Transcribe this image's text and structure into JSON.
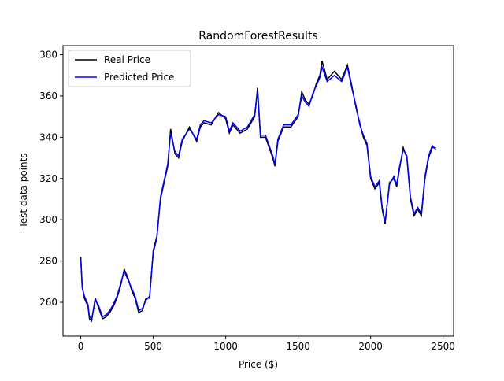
{
  "chart_data": {
    "type": "line",
    "title": "RandomForestResults",
    "x_label": "Price ($)",
    "y_label": "Test data points",
    "x": [
      0,
      10,
      25,
      50,
      60,
      75,
      100,
      120,
      150,
      175,
      200,
      225,
      250,
      275,
      300,
      325,
      350,
      375,
      400,
      425,
      450,
      475,
      500,
      525,
      550,
      575,
      600,
      620,
      650,
      675,
      700,
      750,
      800,
      825,
      850,
      900,
      950,
      1000,
      1025,
      1050,
      1100,
      1150,
      1200,
      1220,
      1240,
      1275,
      1300,
      1325,
      1340,
      1360,
      1400,
      1450,
      1500,
      1525,
      1550,
      1575,
      1600,
      1625,
      1650,
      1665,
      1700,
      1750,
      1800,
      1840,
      1870,
      1900,
      1925,
      1950,
      1975,
      2000,
      2030,
      2060,
      2080,
      2100,
      2130,
      2160,
      2180,
      2200,
      2225,
      2250,
      2275,
      2300,
      2325,
      2350,
      2375,
      2400,
      2425,
      2450
    ],
    "series": [
      {
        "name": "Real Price",
        "color": "#000000",
        "values": [
          282,
          268,
          262,
          258,
          252,
          251,
          262,
          258,
          252,
          253,
          255,
          258,
          262,
          268,
          276,
          272,
          266,
          262,
          255,
          256,
          262,
          262,
          285,
          292,
          310,
          318,
          326,
          344,
          332,
          330,
          338,
          345,
          338,
          345,
          347,
          346,
          352,
          349,
          342,
          346,
          342,
          344,
          350,
          364,
          340,
          340,
          335,
          330,
          326,
          338,
          345,
          345,
          350,
          362,
          358,
          356,
          360,
          366,
          370,
          377,
          368,
          372,
          368,
          375,
          365,
          354,
          347,
          340,
          336,
          320,
          315,
          318,
          305,
          298,
          318,
          320,
          316,
          325,
          335,
          330,
          310,
          302,
          305,
          302,
          320,
          330,
          335,
          335
        ]
      },
      {
        "name": "Predicted Price",
        "color": "#0000ff",
        "values": [
          281,
          267,
          263,
          259,
          253,
          252,
          261,
          259,
          253,
          254,
          256,
          259,
          263,
          269,
          275,
          271,
          267,
          263,
          256,
          257,
          261,
          263,
          284,
          291,
          311,
          319,
          327,
          342,
          333,
          331,
          339,
          344,
          339,
          346,
          348,
          347,
          351,
          350,
          343,
          347,
          343,
          345,
          351,
          362,
          341,
          341,
          336,
          331,
          327,
          339,
          346,
          346,
          351,
          360,
          357,
          355,
          361,
          365,
          369,
          374,
          367,
          370,
          367,
          374,
          364,
          355,
          346,
          341,
          337,
          321,
          316,
          319,
          306,
          299,
          317,
          321,
          317,
          326,
          334,
          331,
          311,
          303,
          306,
          303,
          321,
          331,
          336,
          334
        ]
      }
    ],
    "xlim": [
      -122.5,
      2572.5
    ],
    "xticks": [
      0,
      500,
      1000,
      1500,
      2000,
      2500
    ],
    "ylim": [
      243.6,
      384.4
    ],
    "yticks": [
      260,
      280,
      300,
      320,
      340,
      360,
      380
    ],
    "legend": "upper left"
  }
}
